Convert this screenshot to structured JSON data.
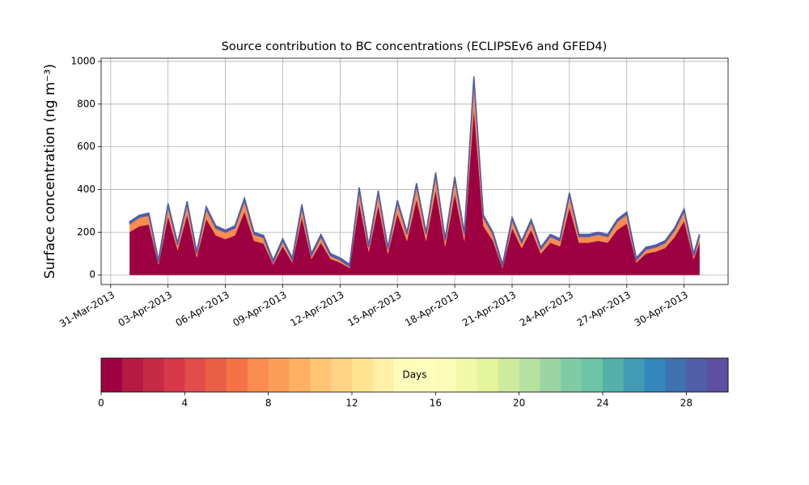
{
  "chart_data": {
    "type": "stacked_area",
    "title": "Source contribution to BC concentrations (ECLIPSEv6 and GFED4)",
    "y_label": "Surface concentration (ng m⁻³)",
    "x": [
      1,
      1.5,
      2,
      2.5,
      3,
      3.5,
      4,
      4.5,
      5,
      5.5,
      6,
      6.5,
      7,
      7.5,
      8,
      8.5,
      9,
      9.5,
      10,
      10.5,
      11,
      11.5,
      12,
      12.5,
      13,
      13.5,
      14,
      14.5,
      15,
      15.5,
      16,
      16.5,
      17,
      17.5,
      18,
      18.5,
      19,
      19.5,
      20,
      20.5,
      21,
      21.5,
      22,
      22.5,
      23,
      23.5,
      24,
      24.5,
      25,
      25.5,
      26,
      26.5,
      27,
      27.5,
      28,
      28.5,
      29,
      29.5,
      30,
      30.5,
      30.8
    ],
    "series": [
      {
        "color": "#9e0142",
        "values": [
          202,
          228,
          236,
          49,
          275,
          117,
          283,
          83,
          262,
          185,
          168,
          185,
          296,
          160,
          147,
          49,
          134,
          58,
          270,
          75,
          151,
          75,
          58,
          32,
          338,
          109,
          326,
          100,
          287,
          160,
          355,
          160,
          398,
          134,
          381,
          160,
          780,
          228,
          160,
          32,
          219,
          126,
          211,
          100,
          151,
          134,
          317,
          151,
          151,
          160,
          151,
          211,
          241,
          58,
          100,
          109,
          126,
          177,
          253,
          75,
          151
        ]
      },
      {
        "color": "#f88c51",
        "values": [
          38,
          42,
          44,
          11,
          50,
          23,
          52,
          17,
          48,
          35,
          32,
          35,
          54,
          30,
          28,
          11,
          26,
          12,
          50,
          15,
          29,
          15,
          12,
          8,
          62,
          21,
          59,
          20,
          53,
          30,
          65,
          30,
          72,
          26,
          69,
          30,
          140,
          42,
          30,
          8,
          41,
          24,
          39,
          20,
          29,
          26,
          58,
          29,
          29,
          30,
          29,
          39,
          44,
          12,
          20,
          21,
          24,
          33,
          47,
          15,
          29
        ]
      },
      {
        "color": "#4e5ea9",
        "values": [
          10,
          10,
          10,
          10,
          10,
          10,
          10,
          10,
          10,
          10,
          10,
          10,
          10,
          10,
          10,
          10,
          10,
          10,
          10,
          10,
          10,
          10,
          10,
          10,
          10,
          10,
          10,
          10,
          10,
          10,
          10,
          10,
          10,
          10,
          10,
          10,
          10,
          10,
          10,
          10,
          10,
          10,
          10,
          10,
          10,
          10,
          10,
          10,
          10,
          10,
          10,
          10,
          10,
          10,
          10,
          10,
          10,
          10,
          10,
          10,
          10
        ]
      }
    ],
    "xlim": [
      -0.5,
      32.3
    ],
    "xticks": [
      {
        "value": 0,
        "label": "31-Mar-2013"
      },
      {
        "value": 3,
        "label": "03-Apr-2013"
      },
      {
        "value": 6,
        "label": "06-Apr-2013"
      },
      {
        "value": 9,
        "label": "09-Apr-2013"
      },
      {
        "value": 12,
        "label": "12-Apr-2013"
      },
      {
        "value": 15,
        "label": "15-Apr-2013"
      },
      {
        "value": 18,
        "label": "18-Apr-2013"
      },
      {
        "value": 21,
        "label": "21-Apr-2013"
      },
      {
        "value": 24,
        "label": "24-Apr-2013"
      },
      {
        "value": 27,
        "label": "27-Apr-2013"
      },
      {
        "value": 30,
        "label": "30-Apr-2013"
      }
    ],
    "ylim": [
      -45,
      1015
    ],
    "yticks": [
      0,
      200,
      400,
      600,
      800,
      1000
    ],
    "grid": true,
    "colorbar": {
      "label": "Days",
      "lim": [
        0,
        30
      ],
      "ticks": [
        0,
        4,
        8,
        12,
        16,
        20,
        24,
        28
      ],
      "colors": [
        "#9e0142",
        "#b51a44",
        "#c62b46",
        "#d7394a",
        "#e24d4b",
        "#ea5f47",
        "#f47245",
        "#f88c51",
        "#fb9d59",
        "#fdb163",
        "#fec574",
        "#fed385",
        "#fee391",
        "#fff0a6",
        "#fffcbb",
        "#fefebd",
        "#fbfdb9",
        "#f1f9a9",
        "#e4f49a",
        "#cdeb9d",
        "#b6e2a1",
        "#9ad5a3",
        "#80cba4",
        "#6cc3a5",
        "#55b0ab",
        "#419bb5",
        "#3487bc",
        "#3f71b0",
        "#4e5ea9",
        "#5e4fa2"
      ]
    }
  }
}
